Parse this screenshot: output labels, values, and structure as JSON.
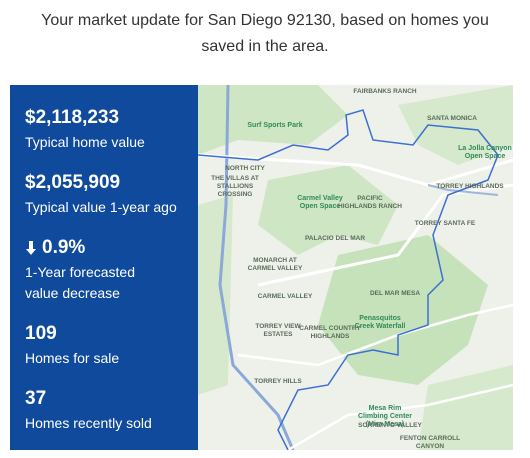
{
  "intro": "Your market update for San Diego 92130, based on homes you saved in the area.",
  "stats": [
    {
      "value": "$2,118,233",
      "label": "Typical home value"
    },
    {
      "value": "$2,055,909",
      "label": "Typical value 1-year ago"
    },
    {
      "value": "0.9%",
      "label": "1-Year forecasted value decrease"
    },
    {
      "value": "109",
      "label": "Homes for sale"
    },
    {
      "value": "37",
      "label": "Homes recently sold"
    }
  ],
  "map_labels": [
    "Fairbanks Ranch",
    "Santa Monica",
    "Surf Sports Park",
    "North City",
    "The Villas at Stallions Crossing",
    "Carmel Valley Open Space",
    "Pacific Highlands Ranch",
    "Torrey Highlands",
    "Torrey Santa Fe",
    "Monarch at Carmel Valley",
    "Palacio Del Mar",
    "Carmel Valley",
    "Del Mar Mesa",
    "Torrey View Estates",
    "Carmel Country Highlands",
    "Penasquitos Creek Waterfall",
    "Torrey Hills",
    "Mesa Rim Climbing Center (Mira Mesa)",
    "Sorrento Valley",
    "Fenton Carroll Canyon",
    "La Jolla Canyon Open Space"
  ]
}
